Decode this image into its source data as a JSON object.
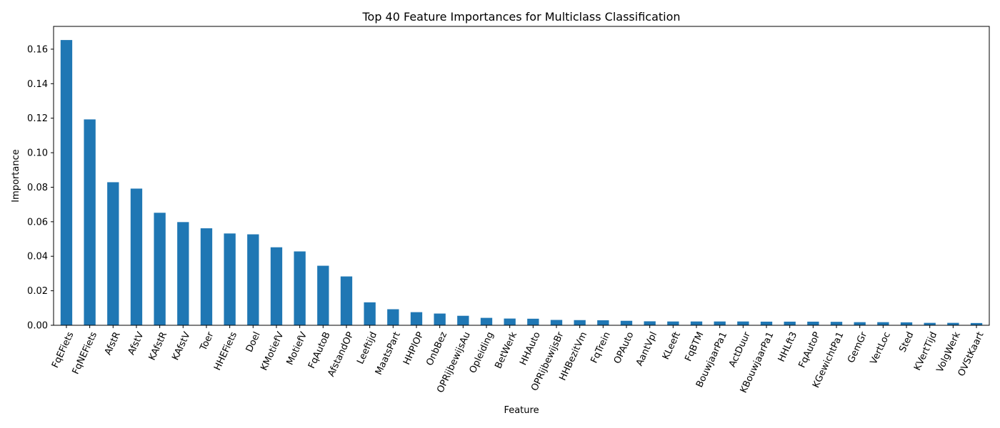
{
  "chart_data": {
    "type": "bar",
    "title": "Top 40 Feature Importances for Multiclass Classification",
    "xlabel": "Feature",
    "ylabel": "Importance",
    "ylim": [
      0,
      0.1732
    ],
    "yticks": [
      "0.00",
      "0.02",
      "0.04",
      "0.06",
      "0.08",
      "0.10",
      "0.12",
      "0.14",
      "0.16"
    ],
    "bar_color": "#1f77b4",
    "grid": false,
    "legend": "none",
    "categories": [
      "FqEFiets",
      "FqNEFiets",
      "AfstR",
      "AfstV",
      "KAfstR",
      "KAfstV",
      "Toer",
      "HHEFiets",
      "Doel",
      "KMotiefV",
      "MotiefV",
      "FqAutoB",
      "AfstandOP",
      "Leeftijd",
      "MaatsPart",
      "HHPlOP",
      "OnbBez",
      "OPRijbewijsAu",
      "Opleiding",
      "BetWerk",
      "HHAuto",
      "OPRijbewijsBr",
      "HHBezitVm",
      "FqTrein",
      "OPAuto",
      "AantVpl",
      "KLeeft",
      "FqBTM",
      "BouwjaarPa1",
      "ActDuur",
      "KBouwjaarPa1",
      "HHLft3",
      "FqAutoP",
      "KGewichtPa1",
      "GemGr",
      "VertLoc",
      "Sted",
      "KVertTijd",
      "VolgWerk",
      "OVStKaart"
    ],
    "values": [
      0.1653,
      0.1193,
      0.0829,
      0.0792,
      0.0652,
      0.0598,
      0.0562,
      0.0532,
      0.0527,
      0.0452,
      0.0428,
      0.0345,
      0.0283,
      0.0133,
      0.0093,
      0.0076,
      0.0068,
      0.0055,
      0.0043,
      0.0039,
      0.0038,
      0.0031,
      0.003,
      0.0029,
      0.0026,
      0.0023,
      0.0022,
      0.0022,
      0.0022,
      0.0022,
      0.0021,
      0.0021,
      0.0021,
      0.002,
      0.0018,
      0.0018,
      0.0017,
      0.0014,
      0.0014,
      0.0013
    ]
  }
}
